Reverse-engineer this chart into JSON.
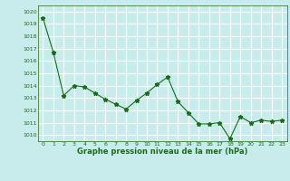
{
  "x": [
    0,
    1,
    2,
    3,
    4,
    5,
    6,
    7,
    8,
    9,
    10,
    11,
    12,
    13,
    14,
    15,
    16,
    17,
    18,
    19,
    20,
    21,
    22,
    23
  ],
  "y": [
    1019.5,
    1016.7,
    1013.2,
    1014.0,
    1013.9,
    1013.4,
    1012.9,
    1012.5,
    1012.1,
    1012.8,
    1013.4,
    1014.1,
    1014.7,
    1012.7,
    1011.8,
    1010.9,
    1010.9,
    1011.0,
    1009.7,
    1011.5,
    1011.0,
    1011.2,
    1011.1,
    1011.2
  ],
  "line_color": "#1a6b1a",
  "marker": "*",
  "marker_color": "#1a6b1a",
  "bg_color": "#c8ecec",
  "grid_color": "#ffffff",
  "xlabel": "Graphe pression niveau de la mer (hPa)",
  "xlabel_color": "#1a6b1a",
  "tick_color": "#1a6b1a",
  "spine_color": "#1a6b1a",
  "ylim": [
    1009.5,
    1020.5
  ],
  "xlim": [
    -0.5,
    23.5
  ],
  "yticks": [
    1010,
    1011,
    1012,
    1013,
    1014,
    1015,
    1016,
    1017,
    1018,
    1019,
    1020
  ],
  "xticks": [
    0,
    1,
    2,
    3,
    4,
    5,
    6,
    7,
    8,
    9,
    10,
    11,
    12,
    13,
    14,
    15,
    16,
    17,
    18,
    19,
    20,
    21,
    22,
    23
  ]
}
